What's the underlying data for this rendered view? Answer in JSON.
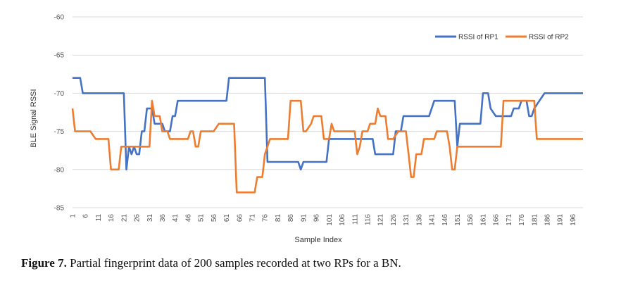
{
  "chart_data": {
    "type": "line",
    "title": "",
    "xlabel": "Sample Index",
    "ylabel": "BLE Signal RSSI",
    "ylim": [
      -85,
      -60
    ],
    "yticks": [
      -60,
      -65,
      -70,
      -75,
      -80,
      -85
    ],
    "xlim": [
      1,
      200
    ],
    "xticks": [
      1,
      6,
      11,
      16,
      21,
      26,
      31,
      36,
      41,
      46,
      51,
      56,
      61,
      66,
      71,
      76,
      81,
      86,
      91,
      96,
      101,
      106,
      111,
      116,
      121,
      126,
      131,
      136,
      141,
      146,
      151,
      156,
      161,
      166,
      171,
      176,
      181,
      186,
      191,
      196
    ],
    "grid": true,
    "legend_position": "top-right",
    "series": [
      {
        "name": "RSSI of RP1",
        "color": "#4472C4",
        "points": [
          [
            1,
            -68
          ],
          [
            4,
            -68
          ],
          [
            5,
            -70
          ],
          [
            21,
            -70
          ],
          [
            22,
            -80
          ],
          [
            23,
            -77
          ],
          [
            24,
            -78
          ],
          [
            25,
            -77
          ],
          [
            26,
            -78
          ],
          [
            27,
            -78
          ],
          [
            28,
            -75
          ],
          [
            29,
            -75
          ],
          [
            30,
            -72
          ],
          [
            32,
            -72
          ],
          [
            33,
            -74
          ],
          [
            36,
            -74
          ],
          [
            37,
            -75
          ],
          [
            39,
            -75
          ],
          [
            40,
            -73
          ],
          [
            41,
            -73
          ],
          [
            42,
            -71
          ],
          [
            61,
            -71
          ],
          [
            62,
            -68
          ],
          [
            76,
            -68
          ],
          [
            77,
            -79
          ],
          [
            89,
            -79
          ],
          [
            90,
            -80
          ],
          [
            91,
            -79
          ],
          [
            100,
            -79
          ],
          [
            101,
            -76
          ],
          [
            118,
            -76
          ],
          [
            119,
            -78
          ],
          [
            126,
            -78
          ],
          [
            127,
            -75
          ],
          [
            129,
            -75
          ],
          [
            130,
            -73
          ],
          [
            140,
            -73
          ],
          [
            141,
            -72
          ],
          [
            142,
            -71
          ],
          [
            150,
            -71
          ],
          [
            151,
            -77
          ],
          [
            152,
            -74
          ],
          [
            160,
            -74
          ],
          [
            161,
            -70
          ],
          [
            163,
            -70
          ],
          [
            164,
            -72
          ],
          [
            166,
            -73
          ],
          [
            172,
            -73
          ],
          [
            173,
            -72
          ],
          [
            175,
            -72
          ],
          [
            176,
            -71
          ],
          [
            178,
            -71
          ],
          [
            179,
            -73
          ],
          [
            180,
            -73
          ],
          [
            181,
            -72
          ],
          [
            183,
            -71
          ],
          [
            185,
            -70
          ],
          [
            200,
            -70
          ]
        ]
      },
      {
        "name": "RSSI of RP2",
        "color": "#ED7D31",
        "points": [
          [
            1,
            -72
          ],
          [
            2,
            -75
          ],
          [
            8,
            -75
          ],
          [
            10,
            -76
          ],
          [
            15,
            -76
          ],
          [
            16,
            -80
          ],
          [
            19,
            -80
          ],
          [
            20,
            -77
          ],
          [
            31,
            -77
          ],
          [
            32,
            -71
          ],
          [
            33,
            -73
          ],
          [
            35,
            -73
          ],
          [
            36,
            -75
          ],
          [
            38,
            -75
          ],
          [
            39,
            -76
          ],
          [
            46,
            -76
          ],
          [
            47,
            -75
          ],
          [
            48,
            -75
          ],
          [
            49,
            -77
          ],
          [
            50,
            -77
          ],
          [
            51,
            -75
          ],
          [
            56,
            -75
          ],
          [
            58,
            -74
          ],
          [
            64,
            -74
          ],
          [
            65,
            -83
          ],
          [
            72,
            -83
          ],
          [
            73,
            -81
          ],
          [
            75,
            -81
          ],
          [
            76,
            -78
          ],
          [
            78,
            -76
          ],
          [
            85,
            -76
          ],
          [
            86,
            -71
          ],
          [
            90,
            -71
          ],
          [
            91,
            -75
          ],
          [
            92,
            -75
          ],
          [
            94,
            -74
          ],
          [
            95,
            -73
          ],
          [
            98,
            -73
          ],
          [
            99,
            -76
          ],
          [
            101,
            -76
          ],
          [
            102,
            -74
          ],
          [
            103,
            -75
          ],
          [
            111,
            -75
          ],
          [
            112,
            -78
          ],
          [
            113,
            -77
          ],
          [
            114,
            -75
          ],
          [
            116,
            -75
          ],
          [
            117,
            -74
          ],
          [
            119,
            -74
          ],
          [
            120,
            -72
          ],
          [
            121,
            -73
          ],
          [
            123,
            -73
          ],
          [
            124,
            -76
          ],
          [
            126,
            -76
          ],
          [
            128,
            -75
          ],
          [
            131,
            -75
          ],
          [
            132,
            -78
          ],
          [
            133,
            -81
          ],
          [
            134,
            -81
          ],
          [
            135,
            -78
          ],
          [
            137,
            -78
          ],
          [
            138,
            -76
          ],
          [
            142,
            -76
          ],
          [
            143,
            -75
          ],
          [
            147,
            -75
          ],
          [
            148,
            -77
          ],
          [
            149,
            -80
          ],
          [
            150,
            -80
          ],
          [
            151,
            -77
          ],
          [
            168,
            -77
          ],
          [
            169,
            -71
          ],
          [
            181,
            -71
          ],
          [
            182,
            -76
          ],
          [
            200,
            -76
          ]
        ]
      }
    ]
  },
  "caption": {
    "label": "Figure 7.",
    "text": "Partial fingerprint data of 200 samples recorded at two RPs for a BN."
  }
}
